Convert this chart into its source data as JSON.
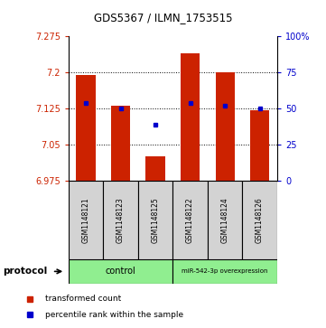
{
  "title": "GDS5367 / ILMN_1753515",
  "samples": [
    "GSM1148121",
    "GSM1148123",
    "GSM1148125",
    "GSM1148122",
    "GSM1148124",
    "GSM1148126"
  ],
  "bar_bottoms": [
    6.975,
    6.975,
    6.975,
    6.975,
    6.975,
    6.975
  ],
  "bar_tops": [
    7.195,
    7.13,
    7.025,
    7.24,
    7.2,
    7.12
  ],
  "blue_dot_y": [
    7.135,
    7.125,
    7.09,
    7.135,
    7.13,
    7.125
  ],
  "ylim_left": [
    6.975,
    7.275
  ],
  "yticks_left": [
    6.975,
    7.05,
    7.125,
    7.2,
    7.275
  ],
  "ytick_labels_left": [
    "6.975",
    "7.05",
    "7.125",
    "7.2",
    "7.275"
  ],
  "ylim_right": [
    0,
    100
  ],
  "yticks_right": [
    0,
    25,
    50,
    75,
    100
  ],
  "ytick_labels_right": [
    "0",
    "25",
    "50",
    "75",
    "100%"
  ],
  "bar_color": "#cc2200",
  "blue_dot_color": "#0000cc",
  "legend_bar_label": "transformed count",
  "legend_dot_label": "percentile rank within the sample",
  "left_tick_color": "#cc2200",
  "right_tick_color": "#0000cc",
  "sample_box_color": "#d3d3d3",
  "group_color": "#90ee90",
  "title_fontsize": 8.5,
  "tick_fontsize": 7,
  "sample_fontsize": 5.5,
  "proto_fontsize": 7,
  "legend_fontsize": 6.5
}
